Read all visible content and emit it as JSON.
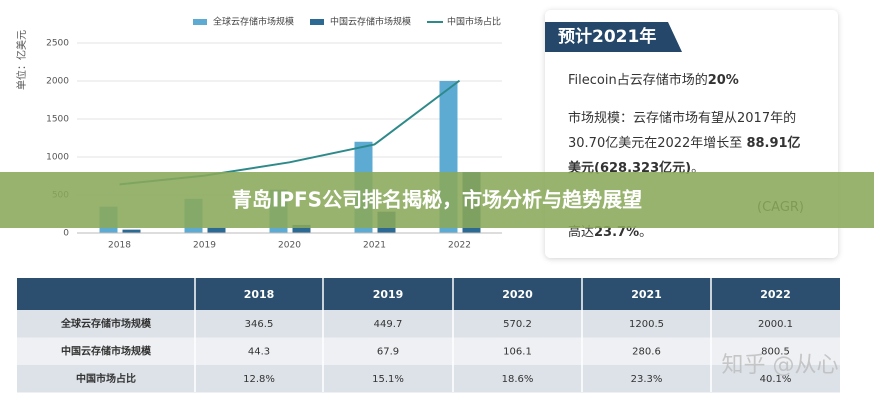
{
  "chart_data": {
    "type": "bar",
    "y_label": "单位：亿美元",
    "categories": [
      "2018",
      "2019",
      "2020",
      "2021",
      "2022"
    ],
    "series": [
      {
        "name": "全球云存储市场规模",
        "color": "#5dabd3",
        "values": [
          346.5,
          449.7,
          570.2,
          1200.5,
          2000.1
        ]
      },
      {
        "name": "中国云存储市场规模",
        "color": "#2d6a93",
        "values": [
          44.3,
          67.9,
          106.1,
          280.6,
          800.5
        ]
      },
      {
        "name": "中国市场占比",
        "color": "#2e8a8a",
        "values": [
          12.8,
          15.1,
          18.6,
          23.3,
          40.1
        ],
        "axis": "y2",
        "type": "line"
      }
    ],
    "ylim": [
      0,
      2500
    ],
    "yticks": [
      0,
      500,
      1000,
      1500,
      2000,
      2500
    ],
    "y2lim": [
      0,
      50
    ]
  },
  "card": {
    "title": "预计2021年",
    "lines": [
      [
        {
          "t": "Filecoin占云存储市场的",
          "b": false
        },
        {
          "t": "20%",
          "b": true
        }
      ],
      [
        {
          "t": "市场规模：云存储市场有望从2017年的",
          "b": false
        }
      ],
      [
        {
          "t": "30.70亿美元在2022年增长至 ",
          "b": false
        },
        {
          "t": "88.91亿",
          "b": true
        }
      ],
      [
        {
          "t": "美元(628.323亿元)",
          "b": true
        },
        {
          "t": "。",
          "b": false
        }
      ],
      [
        {
          "t": "(CAGR)",
          "b": false
        }
      ],
      [
        {
          "t": "高达",
          "b": false
        },
        {
          "t": "23.7%",
          "b": true
        },
        {
          "t": "。",
          "b": false
        }
      ]
    ]
  },
  "banner": {
    "title": "青岛IPFS公司排名揭秘，市场分析与趋势展望"
  },
  "table": {
    "columns": [
      "2018",
      "2019",
      "2020",
      "2021",
      "2022"
    ],
    "rows": [
      {
        "label": "全球云存储市场规模",
        "cells": [
          "346.5",
          "449.7",
          "570.2",
          "1200.5",
          "2000.1"
        ]
      },
      {
        "label": "中国云存储市场规模",
        "cells": [
          "44.3",
          "67.9",
          "106.1",
          "280.6",
          "800.5"
        ]
      },
      {
        "label": "中国市场占比",
        "cells": [
          "12.8%",
          "15.1%",
          "18.6%",
          "23.3%",
          "40.1%"
        ]
      }
    ]
  },
  "watermark": "知乎 @从心"
}
